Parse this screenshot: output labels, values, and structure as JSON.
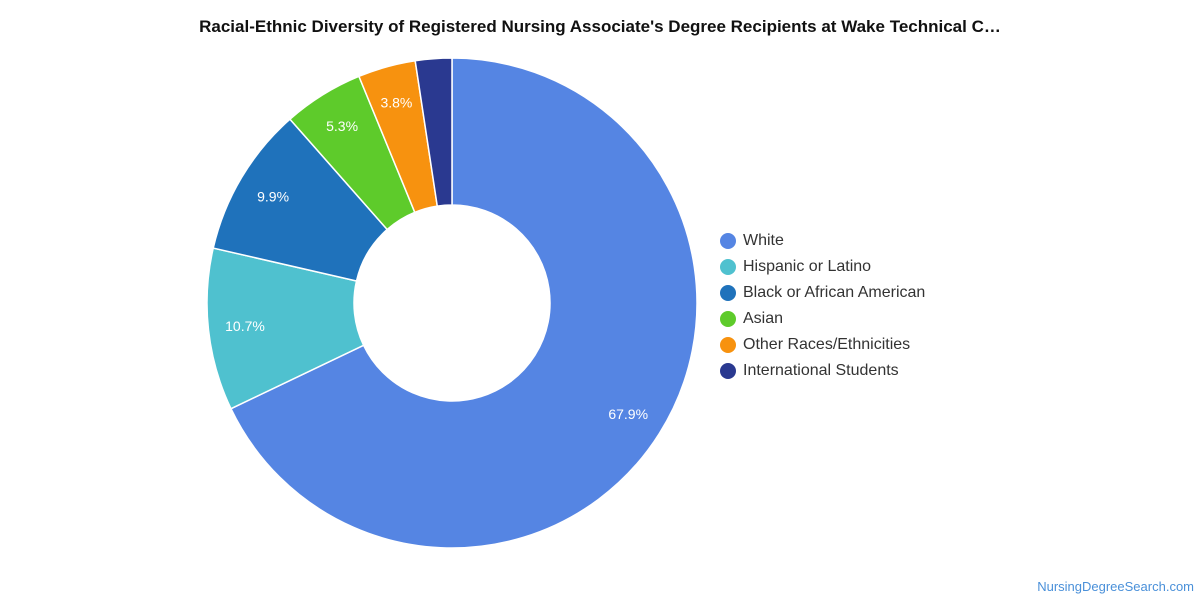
{
  "chart_data": {
    "type": "pie",
    "title": "Racial-Ethnic Diversity of Registered Nursing Associate's Degree Recipients at Wake Technical C…",
    "slices": [
      {
        "name": "White",
        "value": 67.9,
        "label": "67.9%",
        "color": "#5585e3"
      },
      {
        "name": "Hispanic or Latino",
        "value": 10.7,
        "label": "10.7%",
        "color": "#4fc1cf"
      },
      {
        "name": "Black or African American",
        "value": 9.9,
        "label": "9.9%",
        "color": "#1f72bb"
      },
      {
        "name": "Asian",
        "value": 5.3,
        "label": "5.3%",
        "color": "#5ecb2b"
      },
      {
        "name": "Other Races/Ethnicities",
        "value": 3.8,
        "label": "3.8%",
        "color": "#f7920f"
      },
      {
        "name": "International Students",
        "value": 2.4,
        "label": "",
        "color": "#2a3990"
      }
    ],
    "legend_position": "right"
  },
  "credit": "NursingDegreeSearch.com"
}
